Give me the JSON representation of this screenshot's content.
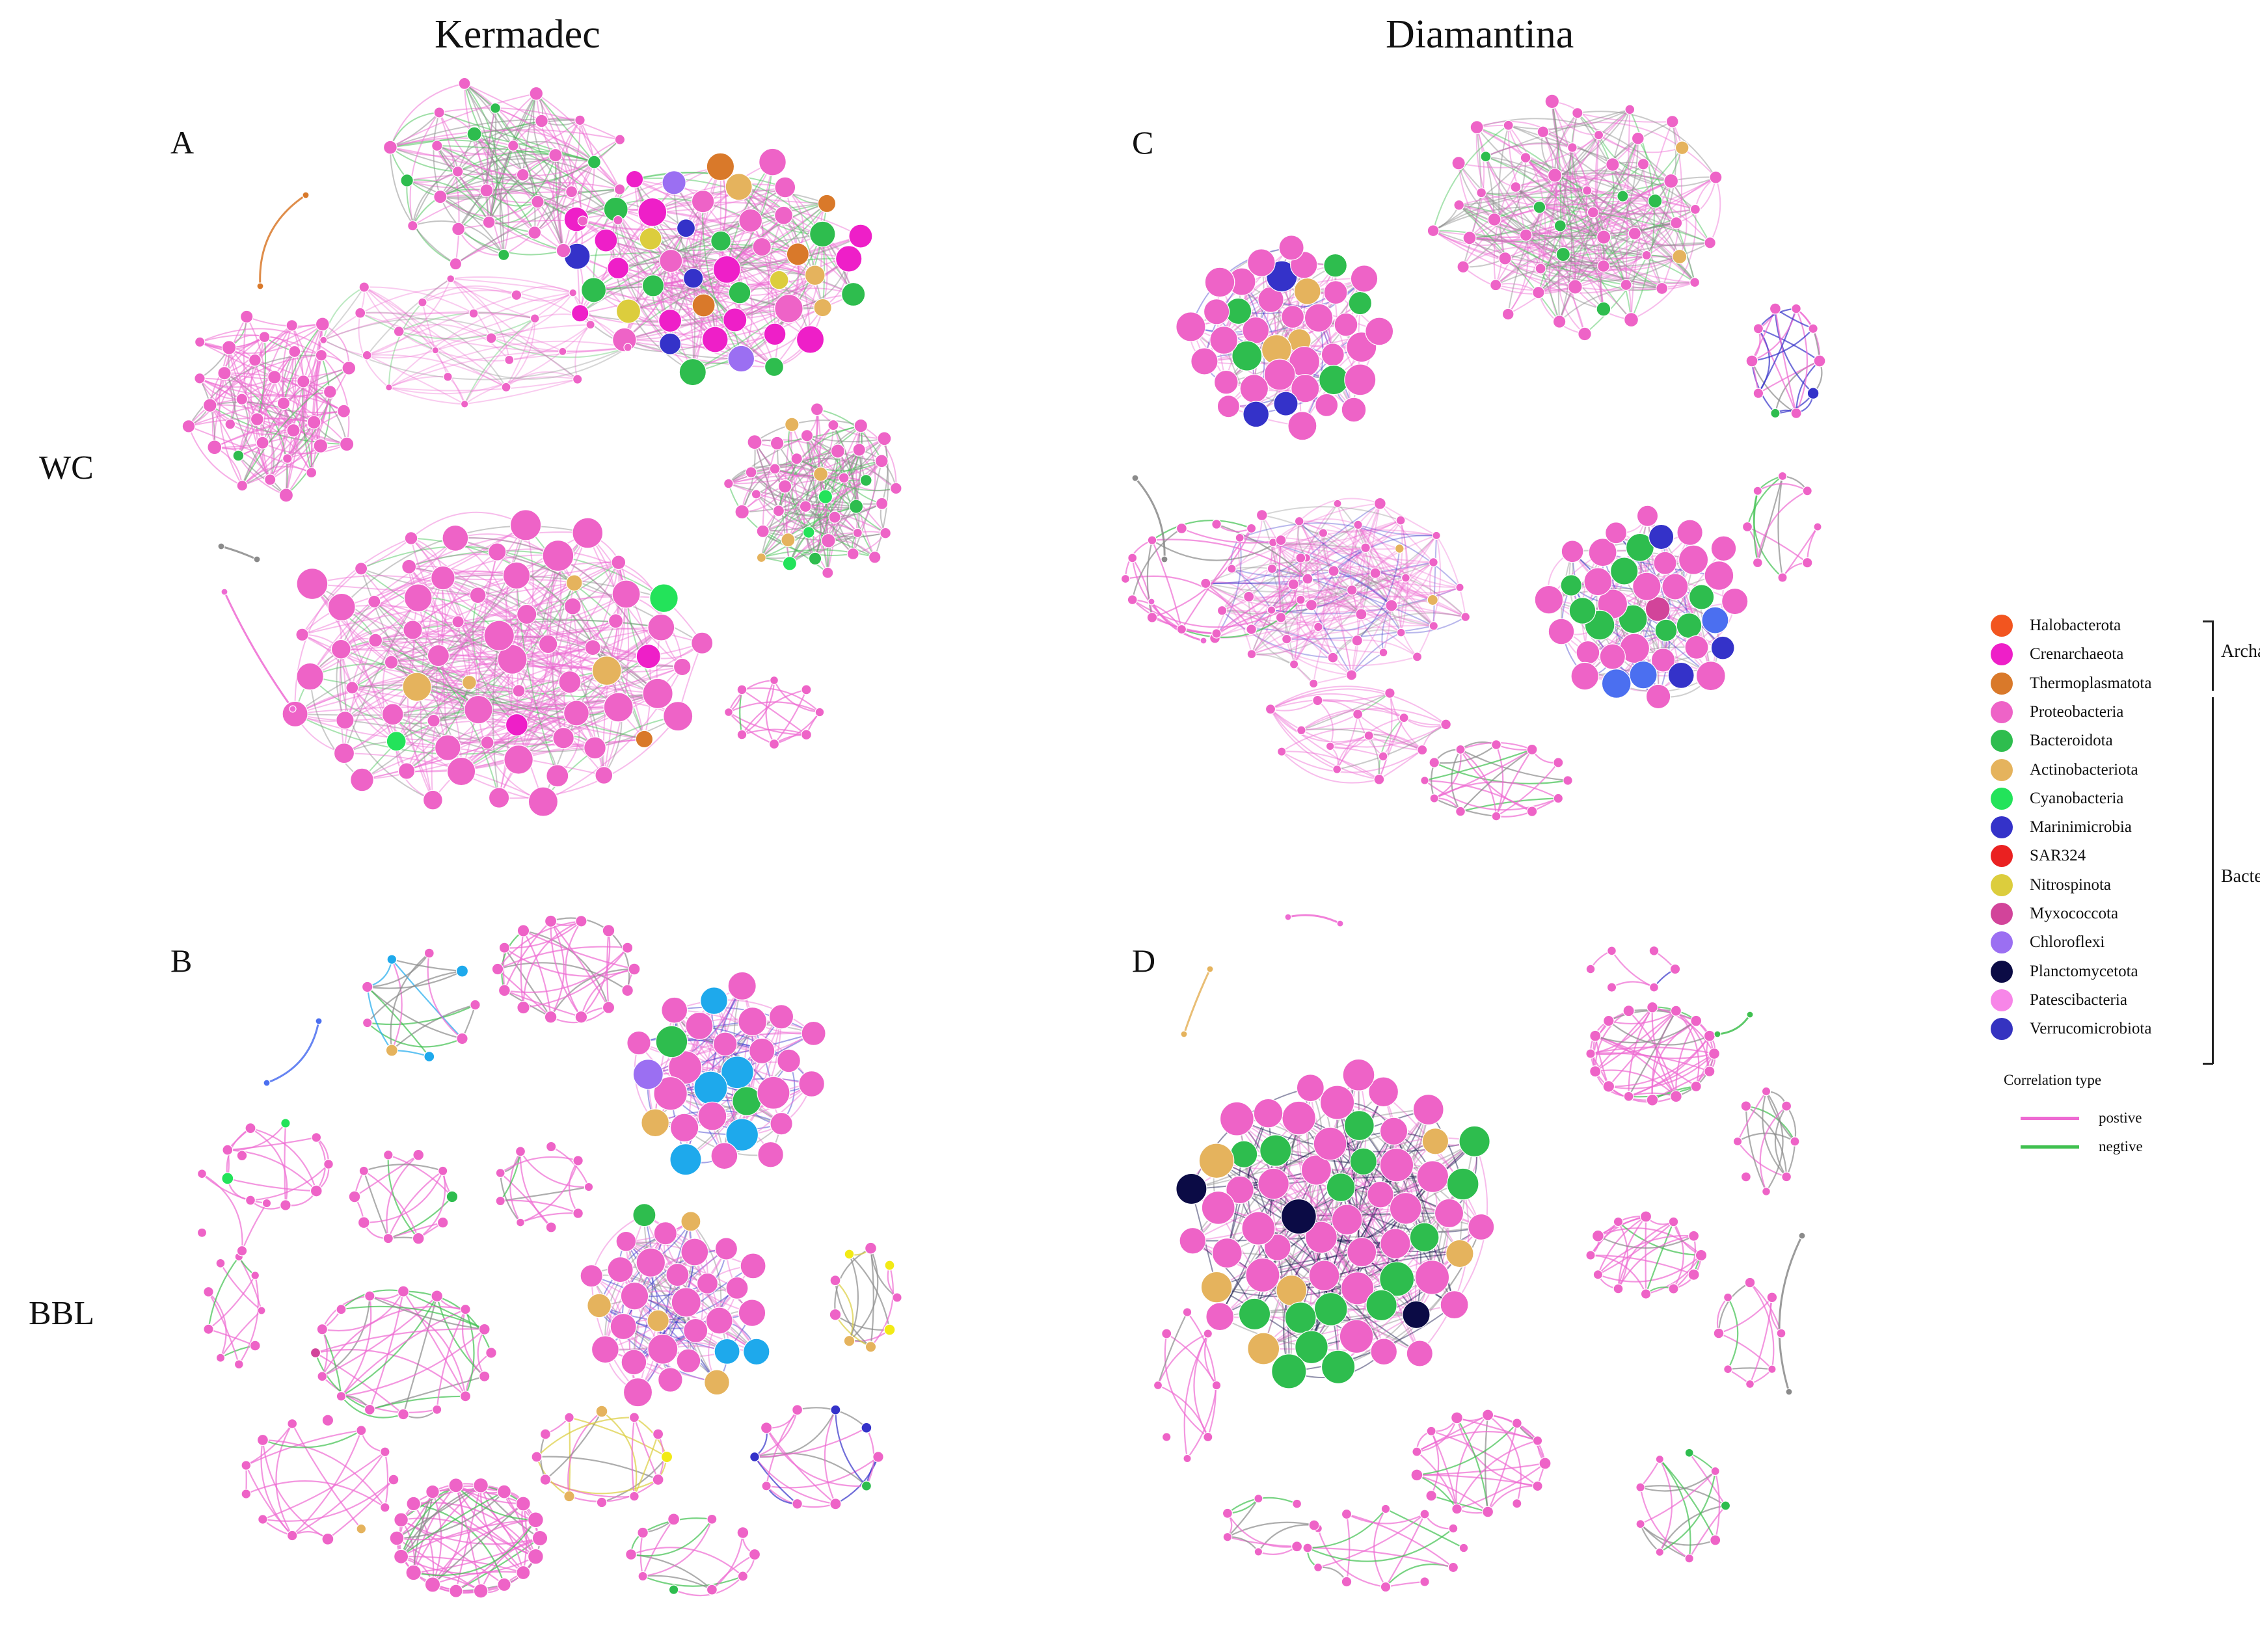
{
  "columns": {
    "left": "Kermadec",
    "right": "Diamantina"
  },
  "rows": {
    "top": "WC",
    "bottom": "BBL"
  },
  "panels": [
    "A",
    "B",
    "C",
    "D"
  ],
  "colors": {
    "Halobacterota": "#f2551f",
    "Crenarchaeota": "#ee1fc8",
    "Thermoplasmatota": "#d9792a",
    "Proteobacteria": "#ee63c7",
    "Bacteroidota": "#2ebd4e",
    "Actinobacteriota": "#e5b35d",
    "Cyanobacteria": "#23e35a",
    "Marinimicrobia": "#3432c9",
    "SAR324": "#ea2121",
    "Nitrospinota": "#dccd3d",
    "Myxococcota": "#d2449a",
    "Chloroflexi": "#9b6ff2",
    "Planctomycetota": "#0b0b45",
    "Patescibacteria": "#f786e8",
    "Verrucomicrobiota": "#3533c0",
    "Cyan": "#1ea9ec",
    "Yellow": "#f2ea15",
    "Blue": "#4b6ff0",
    "positive": "#ee6ad2",
    "negative": "#3fc04f",
    "gray": "#8a8a8a"
  },
  "legend": {
    "items": [
      "Halobacterota",
      "Crenarchaeota",
      "Thermoplasmatota",
      "Proteobacteria",
      "Bacteroidota",
      "Actinobacteriota",
      "Cyanobacteria",
      "Marinimicrobia",
      "SAR324",
      "Nitrospinota",
      "Myxococcota",
      "Chloroflexi",
      "Planctomycetota",
      "Patescibacteria",
      "Verrucomicrobiota"
    ],
    "groups": {
      "archaea": "Archaea",
      "bacteria": "Bacteria"
    },
    "correlation_title": "Correlation type",
    "positive_label": "postive",
    "negative_label": "negtive"
  }
}
